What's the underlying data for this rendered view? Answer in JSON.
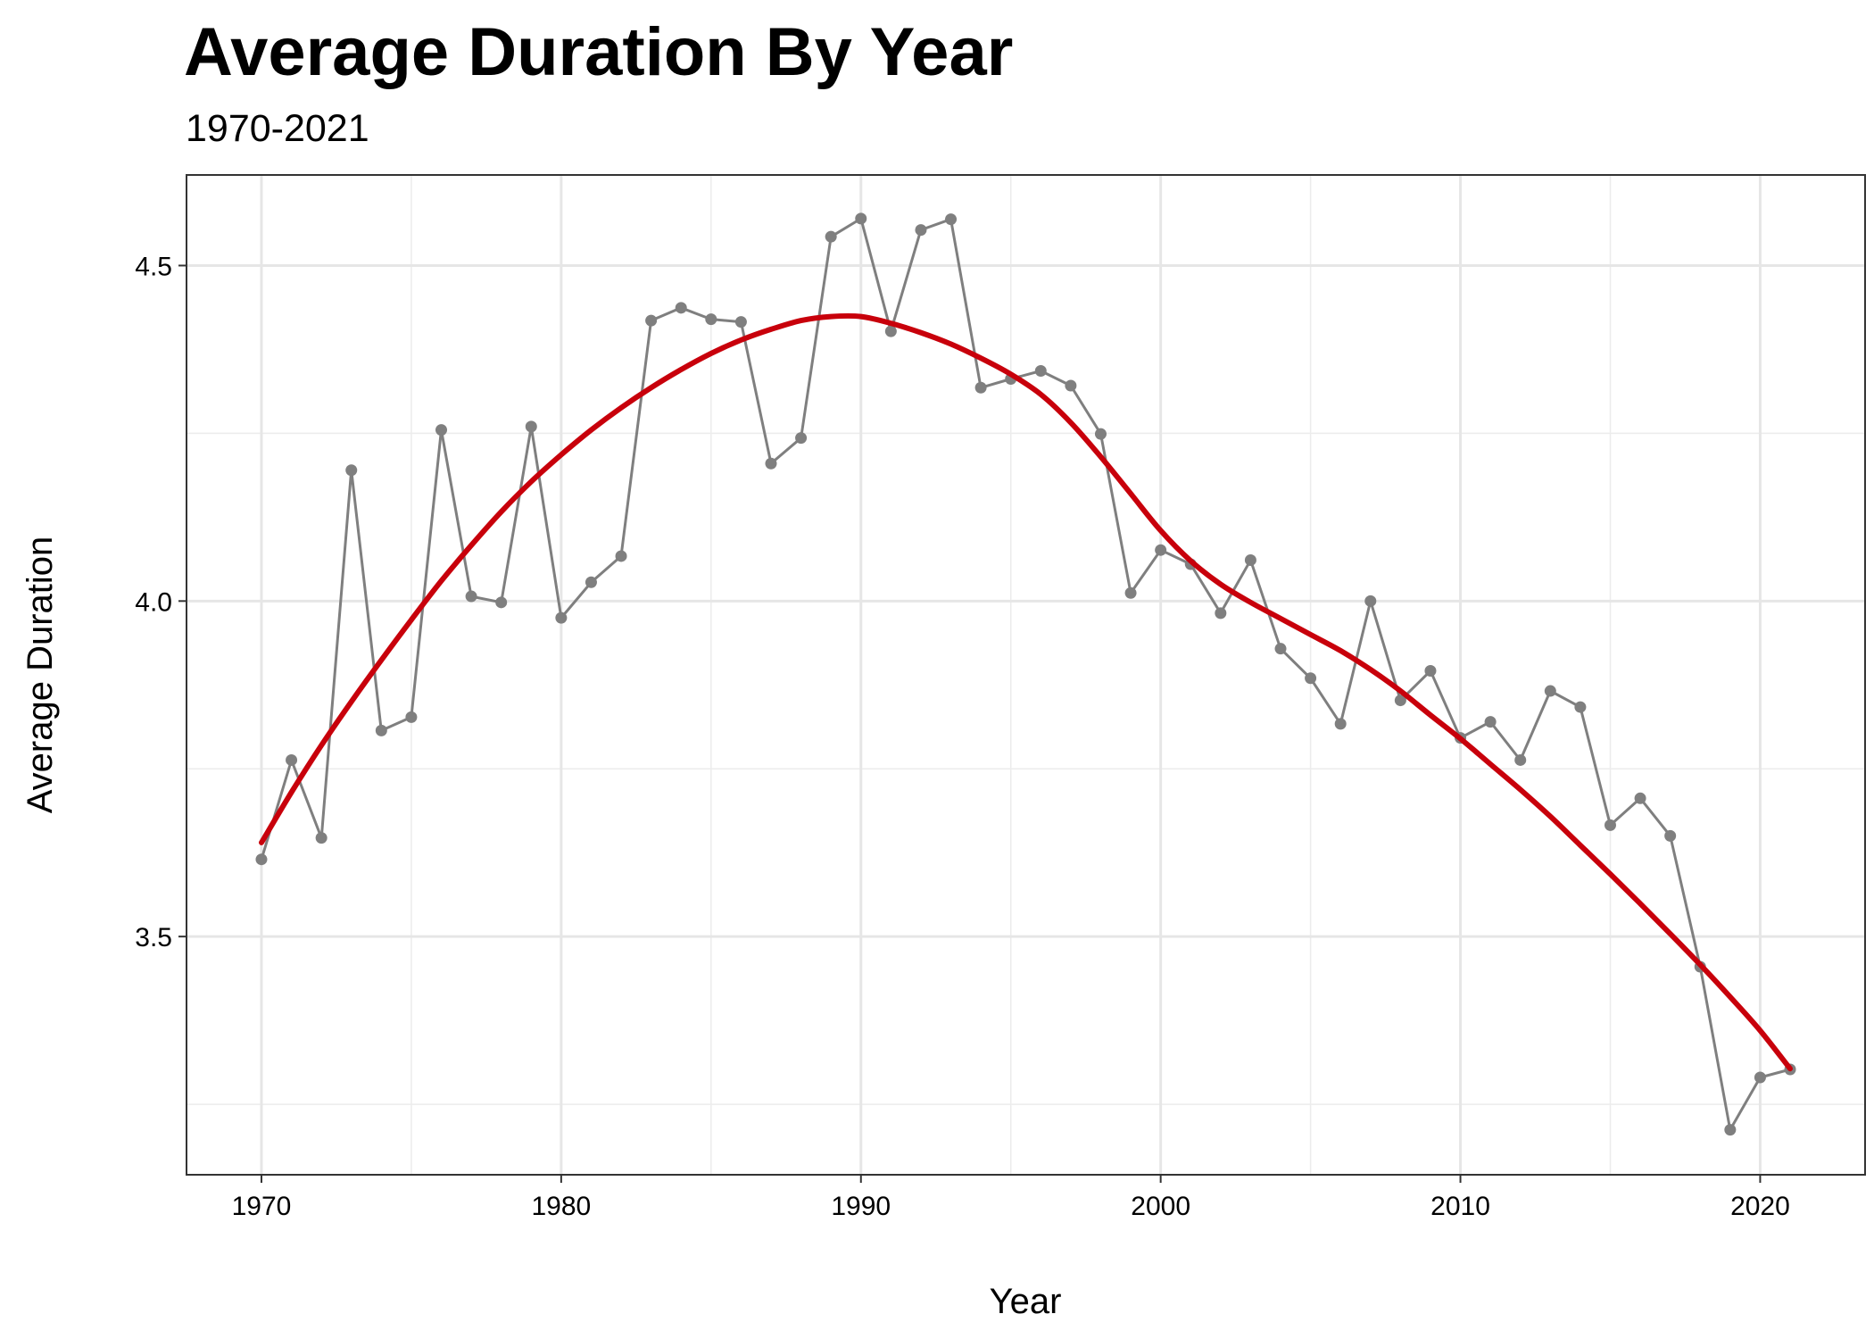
{
  "chart_data": {
    "type": "line",
    "title": "Average Duration By Year",
    "subtitle": "1970-2021",
    "xlabel": "Year",
    "ylabel": "Average Duration",
    "xlim": [
      1967.5,
      2023.5
    ],
    "ylim": [
      3.145,
      4.635
    ],
    "x_ticks": [
      1970,
      1980,
      1990,
      2000,
      2010,
      2020
    ],
    "y_ticks": [
      3.5,
      4.0,
      4.5
    ],
    "y_tick_labels": [
      "3.5",
      "4.0",
      "4.5"
    ],
    "grid": true,
    "series": [
      {
        "style": "line+points",
        "color": "#7f7f7f",
        "x": [
          1970,
          1971,
          1972,
          1973,
          1974,
          1975,
          1976,
          1977,
          1978,
          1979,
          1980,
          1981,
          1982,
          1983,
          1984,
          1985,
          1986,
          1987,
          1988,
          1989,
          1990,
          1991,
          1992,
          1993,
          1994,
          1995,
          1996,
          1997,
          1998,
          1999,
          2000,
          2001,
          2002,
          2003,
          2004,
          2005,
          2006,
          2007,
          2008,
          2009,
          2010,
          2011,
          2012,
          2013,
          2014,
          2015,
          2016,
          2017,
          2018,
          2019,
          2020,
          2021
        ],
        "y": [
          3.615,
          3.763,
          3.647,
          4.195,
          3.807,
          3.827,
          4.255,
          4.007,
          3.998,
          4.26,
          3.975,
          4.028,
          4.067,
          4.418,
          4.437,
          4.42,
          4.416,
          4.205,
          4.243,
          4.543,
          4.57,
          4.402,
          4.553,
          4.569,
          4.318,
          4.331,
          4.343,
          4.321,
          4.249,
          4.012,
          4.076,
          4.055,
          3.982,
          4.061,
          3.929,
          3.885,
          3.817,
          4.0,
          3.852,
          3.896,
          3.796,
          3.82,
          3.763,
          3.866,
          3.842,
          3.666,
          3.706,
          3.65,
          3.455,
          3.212,
          3.29,
          3.302
        ]
      },
      {
        "style": "smooth-line",
        "color": "#c8000b",
        "x": [
          1970,
          1971,
          1972,
          1973,
          1974,
          1975,
          1976,
          1977,
          1978,
          1979,
          1980,
          1981,
          1982,
          1983,
          1984,
          1985,
          1986,
          1987,
          1988,
          1989,
          1990,
          1991,
          1992,
          1993,
          1994,
          1995,
          1996,
          1997,
          1998,
          1999,
          2000,
          2001,
          2002,
          2003,
          2004,
          2005,
          2006,
          2007,
          2008,
          2009,
          2010,
          2011,
          2012,
          2013,
          2014,
          2015,
          2016,
          2017,
          2018,
          2019,
          2020,
          2021
        ],
        "y": [
          3.64,
          3.715,
          3.785,
          3.85,
          3.912,
          3.972,
          4.03,
          4.083,
          4.133,
          4.178,
          4.218,
          4.255,
          4.288,
          4.318,
          4.345,
          4.369,
          4.389,
          4.405,
          4.418,
          4.424,
          4.424,
          4.414,
          4.4,
          4.383,
          4.362,
          4.338,
          4.308,
          4.266,
          4.215,
          4.16,
          4.105,
          4.06,
          4.025,
          3.998,
          3.974,
          3.95,
          3.926,
          3.898,
          3.866,
          3.83,
          3.795,
          3.757,
          3.719,
          3.679,
          3.636,
          3.593,
          3.549,
          3.504,
          3.458,
          3.41,
          3.36,
          3.303
        ]
      }
    ]
  }
}
